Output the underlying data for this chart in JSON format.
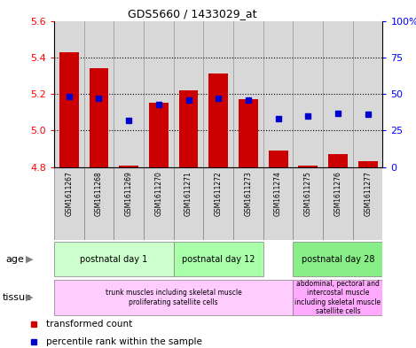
{
  "title": "GDS5660 / 1433029_at",
  "samples": [
    "GSM1611267",
    "GSM1611268",
    "GSM1611269",
    "GSM1611270",
    "GSM1611271",
    "GSM1611272",
    "GSM1611273",
    "GSM1611274",
    "GSM1611275",
    "GSM1611276",
    "GSM1611277"
  ],
  "red_values": [
    5.43,
    5.34,
    4.81,
    5.15,
    5.22,
    5.31,
    5.17,
    4.89,
    4.81,
    4.87,
    4.83
  ],
  "blue_values_pct": [
    48,
    47,
    32,
    43,
    46,
    47,
    46,
    33,
    35,
    37,
    36
  ],
  "y_min": 4.8,
  "y_max": 5.6,
  "y_ticks": [
    4.8,
    5.0,
    5.2,
    5.4,
    5.6
  ],
  "y2_ticks": [
    0,
    25,
    50,
    75,
    100
  ],
  "y2_labels": [
    "0",
    "25",
    "50",
    "75",
    "100%"
  ],
  "bar_bottom": 4.8,
  "bar_width": 0.65,
  "red_color": "#cc0000",
  "blue_color": "#0000cc",
  "age_groups": [
    {
      "label": "postnatal day 1",
      "start": 0,
      "end": 3,
      "color": "#ccffcc"
    },
    {
      "label": "postnatal day 12",
      "start": 4,
      "end": 6,
      "color": "#aaffaa"
    },
    {
      "label": "postnatal day 28",
      "start": 8,
      "end": 10,
      "color": "#88ee88"
    }
  ],
  "tissue_groups": [
    {
      "label": "trunk muscles including skeletal muscle\nproliferating satellite cells",
      "start": 0,
      "end": 7,
      "color": "#ffccff"
    },
    {
      "label": "abdominal, pectoral and\nintercostal muscle\nincluding skeletal muscle\nsatellite cells",
      "start": 8,
      "end": 10,
      "color": "#ffaaff"
    }
  ],
  "legend_red": "transformed count",
  "legend_blue": "percentile rank within the sample",
  "age_label": "age",
  "tissue_label": "tissue",
  "col_bg_color": "#d8d8d8",
  "plot_bg": "#ffffff"
}
